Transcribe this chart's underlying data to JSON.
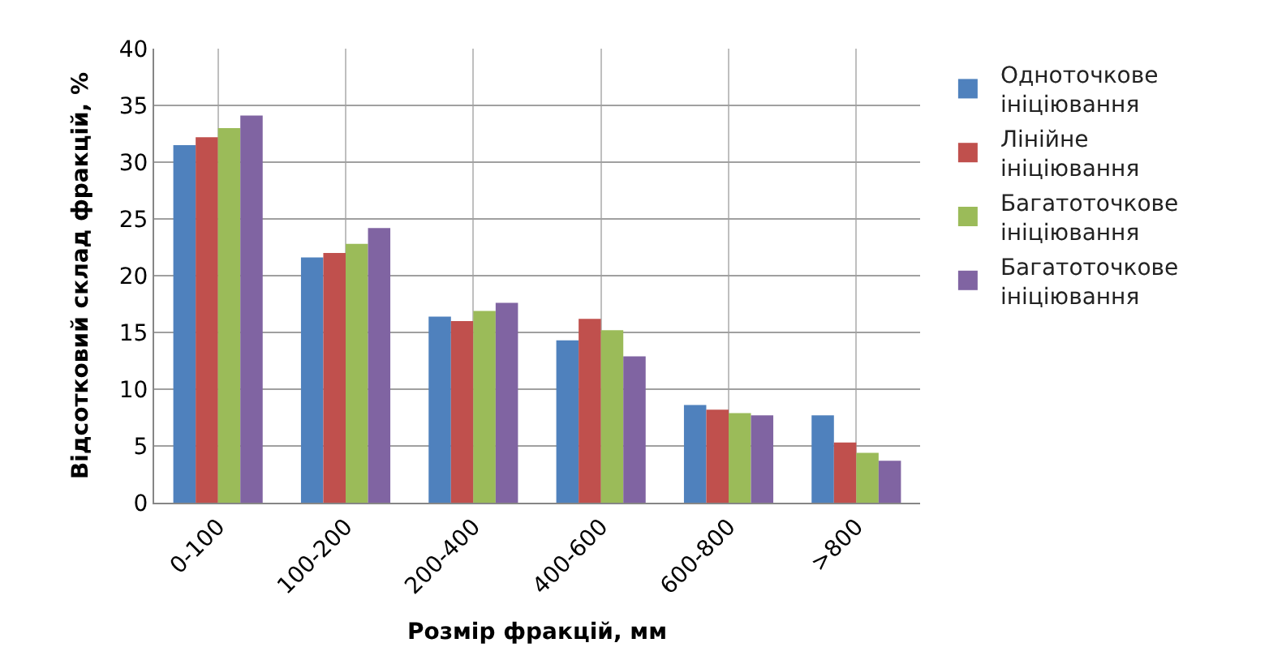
{
  "chart_data": {
    "type": "bar",
    "xlabel": "Розмір фракцій, мм",
    "ylabel": "Відсотковий склад фракцій, %",
    "categories": [
      "0-100",
      "100-200",
      "200-400",
      "400-600",
      "600-800",
      ">800"
    ],
    "series": [
      {
        "name": "Одноточкове ініціювання",
        "color": "#4f81bd",
        "values": [
          31.5,
          21.6,
          16.4,
          14.3,
          8.6,
          7.7
        ]
      },
      {
        "name": "Лінійне ініціювання",
        "color": "#c0504d",
        "values": [
          32.2,
          22.0,
          16.0,
          16.2,
          8.2,
          5.3
        ]
      },
      {
        "name": "Багатоточкове ініціювання",
        "color": "#9bbb59",
        "values": [
          33.0,
          22.8,
          16.9,
          15.2,
          7.9,
          4.4
        ]
      },
      {
        "name": "Багатоточкове ініціювання",
        "color": "#8064a2",
        "values": [
          34.1,
          24.2,
          17.6,
          12.9,
          7.7,
          3.7
        ]
      }
    ],
    "ylim": [
      0,
      40
    ],
    "yticks": [
      0,
      5,
      10,
      15,
      20,
      25,
      30,
      35,
      40
    ],
    "grid": true,
    "legend": "right"
  }
}
